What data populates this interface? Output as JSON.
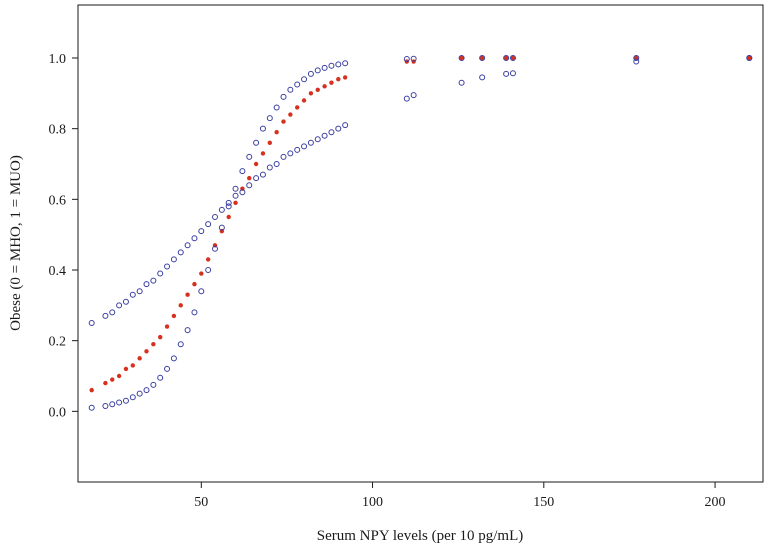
{
  "chart_data": {
    "type": "scatter",
    "title": "",
    "xlabel": "Serum NPY levels (per 10 pg/mL)",
    "ylabel": "Obese (0 = MHO, 1 = MUO)",
    "xlim": [
      14,
      214
    ],
    "ylim": [
      -0.2,
      1.15
    ],
    "xticks": [
      50,
      100,
      150,
      200
    ],
    "yticks": [
      0.0,
      0.2,
      0.4,
      0.6,
      0.8,
      1.0
    ],
    "xtick_labels": [
      "50",
      "100",
      "150",
      "200"
    ],
    "ytick_labels": [
      "0.0",
      "0.2",
      "0.4",
      "0.6",
      "0.8",
      "1.0"
    ],
    "grid": false,
    "legend": "none",
    "series": [
      {
        "marker": "filled",
        "color": "#d7301f",
        "x": [
          18,
          22,
          24,
          26,
          28,
          30,
          32,
          34,
          36,
          38,
          40,
          42,
          44,
          46,
          48,
          50,
          52,
          54,
          56,
          58,
          60,
          62,
          64,
          66,
          68,
          70,
          72,
          74,
          76,
          78,
          80,
          82,
          84,
          86,
          88,
          90,
          92,
          110,
          112,
          126,
          132,
          139,
          141,
          177,
          210
        ],
        "y": [
          0.06,
          0.08,
          0.09,
          0.1,
          0.12,
          0.13,
          0.15,
          0.17,
          0.19,
          0.21,
          0.24,
          0.27,
          0.3,
          0.33,
          0.36,
          0.39,
          0.43,
          0.47,
          0.51,
          0.55,
          0.59,
          0.63,
          0.66,
          0.7,
          0.73,
          0.76,
          0.79,
          0.82,
          0.84,
          0.86,
          0.88,
          0.9,
          0.91,
          0.92,
          0.93,
          0.94,
          0.945,
          0.99,
          0.99,
          1.0,
          1.0,
          1.0,
          1.0,
          1.0,
          1.0
        ]
      },
      {
        "marker": "open",
        "color": "#3a3fa0",
        "x": [
          18,
          22,
          24,
          26,
          28,
          30,
          32,
          34,
          36,
          38,
          40,
          42,
          44,
          46,
          48,
          50,
          52,
          54,
          56,
          58,
          60,
          62,
          64,
          66,
          68,
          70,
          72,
          74,
          76,
          78,
          80,
          82,
          84,
          86,
          88,
          90,
          92,
          110,
          112,
          126,
          132,
          139,
          141,
          177,
          210
        ],
        "y": [
          0.25,
          0.27,
          0.28,
          0.3,
          0.31,
          0.33,
          0.34,
          0.36,
          0.37,
          0.39,
          0.41,
          0.43,
          0.45,
          0.47,
          0.49,
          0.51,
          0.53,
          0.55,
          0.57,
          0.59,
          0.61,
          0.62,
          0.64,
          0.66,
          0.67,
          0.69,
          0.7,
          0.72,
          0.73,
          0.74,
          0.75,
          0.76,
          0.77,
          0.78,
          0.79,
          0.8,
          0.81,
          0.885,
          0.895,
          0.93,
          0.945,
          0.955,
          0.957,
          0.99,
          1.0
        ]
      },
      {
        "marker": "open",
        "color": "#3a3fa0",
        "x": [
          18,
          22,
          24,
          26,
          28,
          30,
          32,
          34,
          36,
          38,
          40,
          42,
          44,
          46,
          48,
          50,
          52,
          54,
          56,
          58,
          60,
          62,
          64,
          66,
          68,
          70,
          72,
          74,
          76,
          78,
          80,
          82,
          84,
          86,
          88,
          90,
          92,
          110,
          112,
          126,
          132,
          139,
          141,
          177,
          210
        ],
        "y": [
          0.01,
          0.015,
          0.02,
          0.025,
          0.03,
          0.04,
          0.05,
          0.06,
          0.075,
          0.095,
          0.12,
          0.15,
          0.19,
          0.23,
          0.28,
          0.34,
          0.4,
          0.46,
          0.52,
          0.58,
          0.63,
          0.68,
          0.72,
          0.76,
          0.8,
          0.83,
          0.86,
          0.89,
          0.91,
          0.925,
          0.94,
          0.955,
          0.965,
          0.972,
          0.978,
          0.982,
          0.985,
          0.997,
          0.998,
          1.0,
          1.0,
          1.0,
          1.0,
          1.0,
          1.0
        ]
      }
    ]
  }
}
